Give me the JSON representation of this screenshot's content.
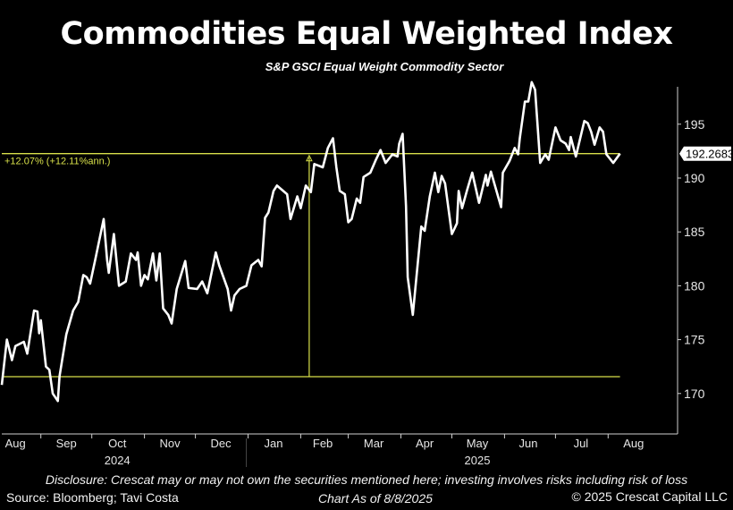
{
  "chart_data": {
    "type": "line",
    "title": "Commodities Equal Weighted Index",
    "subtitle": "S&P GSCI Equal Weight Commodity Sector",
    "line_color": "#ffffff",
    "reference_color": "#d8e04a",
    "ylim": [
      167,
      199.5
    ],
    "yticks": [
      170,
      175,
      180,
      185,
      190,
      195
    ],
    "y_axis_side": "right",
    "grid": false,
    "xlim": [
      "2024-08-09",
      "2025-08-08"
    ],
    "x_month_labels": [
      {
        "label": "Aug",
        "date": "2024-08-17"
      },
      {
        "label": "Sep",
        "date": "2024-09-16"
      },
      {
        "label": "Oct",
        "date": "2024-10-16"
      },
      {
        "label": "Nov",
        "date": "2024-11-16"
      },
      {
        "label": "Dec",
        "date": "2024-12-16"
      },
      {
        "label": "Jan",
        "date": "2025-01-16"
      },
      {
        "label": "Feb",
        "date": "2025-02-14"
      },
      {
        "label": "Mar",
        "date": "2025-03-16"
      },
      {
        "label": "Apr",
        "date": "2025-04-15"
      },
      {
        "label": "May",
        "date": "2025-05-16"
      },
      {
        "label": "Jun",
        "date": "2025-06-15"
      },
      {
        "label": "Jul",
        "date": "2025-07-16"
      },
      {
        "label": "Aug",
        "date": "2025-08-16"
      }
    ],
    "x_ticks": [
      "2024-09-01",
      "2024-10-01",
      "2024-11-01",
      "2024-12-01",
      "2025-01-01",
      "2025-02-01",
      "2025-03-01",
      "2025-04-01",
      "2025-05-01",
      "2025-06-01",
      "2025-07-01",
      "2025-08-01"
    ],
    "x_year_labels": [
      {
        "label": "2024",
        "date": "2024-10-16"
      },
      {
        "label": "2025",
        "date": "2025-05-16"
      }
    ],
    "year_divider": "2025-01-01",
    "last_value_label": "192.2683",
    "last_value": 192.2683,
    "start_reference_value": 171.56,
    "reference_marker_date": "2025-02-06",
    "change_annotation": "+12.07% (+12.11%ann.)",
    "series": [
      {
        "points": [
          [
            "2024-08-09",
            170.8
          ],
          [
            "2024-08-12",
            175.0
          ],
          [
            "2024-08-15",
            173.1
          ],
          [
            "2024-08-17",
            174.4
          ],
          [
            "2024-08-22",
            174.8
          ],
          [
            "2024-08-24",
            173.7
          ],
          [
            "2024-08-28",
            177.7
          ],
          [
            "2024-08-30",
            177.6
          ],
          [
            "2024-08-31",
            175.6
          ],
          [
            "2024-09-01",
            176.8
          ],
          [
            "2024-09-04",
            172.5
          ],
          [
            "2024-09-06",
            172.2
          ],
          [
            "2024-09-08",
            170.0
          ],
          [
            "2024-09-11",
            169.3
          ],
          [
            "2024-09-12",
            171.6
          ],
          [
            "2024-09-16",
            175.5
          ],
          [
            "2024-09-20",
            177.7
          ],
          [
            "2024-09-23",
            178.5
          ],
          [
            "2024-09-26",
            181.0
          ],
          [
            "2024-09-28",
            180.8
          ],
          [
            "2024-09-30",
            180.2
          ],
          [
            "2024-10-03",
            182.4
          ],
          [
            "2024-10-08",
            186.2
          ],
          [
            "2024-10-10",
            182.4
          ],
          [
            "2024-10-11",
            181.2
          ],
          [
            "2024-10-14",
            184.8
          ],
          [
            "2024-10-17",
            180.0
          ],
          [
            "2024-10-21",
            180.4
          ],
          [
            "2024-10-24",
            183.0
          ],
          [
            "2024-10-27",
            182.4
          ],
          [
            "2024-10-28",
            183.1
          ],
          [
            "2024-10-30",
            180.0
          ],
          [
            "2024-11-01",
            181.0
          ],
          [
            "2024-11-03",
            180.6
          ],
          [
            "2024-11-06",
            183.0
          ],
          [
            "2024-11-08",
            180.5
          ],
          [
            "2024-11-10",
            183.0
          ],
          [
            "2024-11-12",
            177.9
          ],
          [
            "2024-11-15",
            177.3
          ],
          [
            "2024-11-17",
            176.5
          ],
          [
            "2024-11-20",
            179.7
          ],
          [
            "2024-11-25",
            182.3
          ],
          [
            "2024-11-27",
            179.8
          ],
          [
            "2024-12-02",
            179.7
          ],
          [
            "2024-12-05",
            180.4
          ],
          [
            "2024-12-08",
            179.3
          ],
          [
            "2024-12-13",
            183.1
          ],
          [
            "2024-12-15",
            181.9
          ],
          [
            "2024-12-20",
            179.7
          ],
          [
            "2024-12-22",
            177.7
          ],
          [
            "2024-12-24",
            179.1
          ],
          [
            "2024-12-27",
            179.7
          ],
          [
            "2024-12-31",
            180.0
          ],
          [
            "2025-01-03",
            181.9
          ],
          [
            "2025-01-07",
            182.4
          ],
          [
            "2025-01-09",
            181.8
          ],
          [
            "2025-01-11",
            186.3
          ],
          [
            "2025-01-13",
            186.8
          ],
          [
            "2025-01-16",
            188.8
          ],
          [
            "2025-01-18",
            189.3
          ],
          [
            "2025-01-24",
            188.5
          ],
          [
            "2025-01-26",
            186.2
          ],
          [
            "2025-01-30",
            188.3
          ],
          [
            "2025-02-01",
            187.2
          ],
          [
            "2025-02-04",
            189.3
          ],
          [
            "2025-02-07",
            188.7
          ],
          [
            "2025-02-09",
            191.3
          ],
          [
            "2025-02-14",
            191.0
          ],
          [
            "2025-02-17",
            192.8
          ],
          [
            "2025-02-20",
            193.7
          ],
          [
            "2025-02-22",
            191.0
          ],
          [
            "2025-02-24",
            188.8
          ],
          [
            "2025-02-27",
            188.5
          ],
          [
            "2025-03-01",
            185.9
          ],
          [
            "2025-03-03",
            186.2
          ],
          [
            "2025-03-06",
            188.1
          ],
          [
            "2025-03-08",
            187.7
          ],
          [
            "2025-03-10",
            190.1
          ],
          [
            "2025-03-14",
            190.5
          ],
          [
            "2025-03-17",
            191.6
          ],
          [
            "2025-03-20",
            192.6
          ],
          [
            "2025-03-23",
            191.4
          ],
          [
            "2025-03-27",
            192.2
          ],
          [
            "2025-03-30",
            192.0
          ],
          [
            "2025-03-31",
            193.2
          ],
          [
            "2025-04-02",
            194.1
          ],
          [
            "2025-04-04",
            187.4
          ],
          [
            "2025-04-05",
            180.8
          ],
          [
            "2025-04-08",
            177.3
          ],
          [
            "2025-04-13",
            185.5
          ],
          [
            "2025-04-15",
            185.1
          ],
          [
            "2025-04-18",
            188.3
          ],
          [
            "2025-04-21",
            190.5
          ],
          [
            "2025-04-23",
            188.7
          ],
          [
            "2025-04-25",
            190.2
          ],
          [
            "2025-04-27",
            189.5
          ],
          [
            "2025-05-01",
            184.8
          ],
          [
            "2025-05-04",
            185.8
          ],
          [
            "2025-05-05",
            188.8
          ],
          [
            "2025-05-07",
            187.2
          ],
          [
            "2025-05-10",
            188.9
          ],
          [
            "2025-05-13",
            190.5
          ],
          [
            "2025-05-17",
            187.7
          ],
          [
            "2025-05-21",
            190.3
          ],
          [
            "2025-05-22",
            189.3
          ],
          [
            "2025-05-24",
            190.6
          ],
          [
            "2025-05-30",
            187.3
          ],
          [
            "2025-05-31",
            190.5
          ],
          [
            "2025-06-04",
            191.6
          ],
          [
            "2025-06-07",
            192.8
          ],
          [
            "2025-06-09",
            192.2
          ],
          [
            "2025-06-10",
            193.7
          ],
          [
            "2025-06-13",
            197.1
          ],
          [
            "2025-06-15",
            197.1
          ],
          [
            "2025-06-17",
            198.9
          ],
          [
            "2025-06-19",
            198.2
          ],
          [
            "2025-06-22",
            191.4
          ],
          [
            "2025-06-25",
            192.2
          ],
          [
            "2025-06-27",
            191.7
          ],
          [
            "2025-07-01",
            194.7
          ],
          [
            "2025-07-04",
            193.5
          ],
          [
            "2025-07-07",
            193.2
          ],
          [
            "2025-07-09",
            192.6
          ],
          [
            "2025-07-10",
            193.8
          ],
          [
            "2025-07-13",
            192.0
          ],
          [
            "2025-07-18",
            195.3
          ],
          [
            "2025-07-20",
            195.1
          ],
          [
            "2025-07-22",
            194.3
          ],
          [
            "2025-07-24",
            193.1
          ],
          [
            "2025-07-27",
            194.7
          ],
          [
            "2025-07-29",
            194.3
          ],
          [
            "2025-07-31",
            192.2
          ],
          [
            "2025-08-04",
            191.4
          ],
          [
            "2025-08-08",
            192.27
          ]
        ]
      }
    ]
  },
  "footer": {
    "disclosure": "Disclosure: Crescat may or may not own the securities mentioned here; investing involves risks including risk of loss",
    "source": "Source: Bloomberg; Tavi Costa",
    "as_of": "Chart As of 8/8/2025",
    "copyright": "© 2025 Crescat Capital LLC"
  }
}
